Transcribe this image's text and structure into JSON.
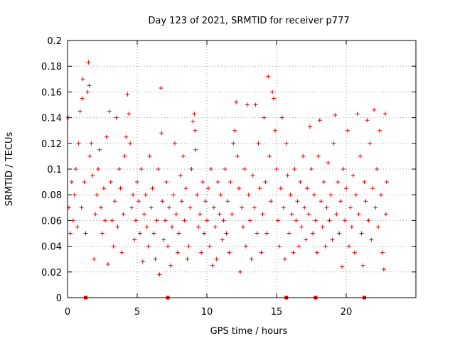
{
  "chart_data": {
    "type": "scatter",
    "title": "Day 123 of 2021, SRMTID for receiver p777",
    "xlabel": "GPS time / hours",
    "ylabel": "SRMTID / TECUs",
    "xlim": [
      0,
      25
    ],
    "ylim": [
      0,
      0.2
    ],
    "x_ticks": [
      0,
      5,
      10,
      15,
      20
    ],
    "x_tick_labels": [
      "0",
      "5",
      "10",
      "15",
      "20"
    ],
    "y_ticks": [
      0,
      0.02,
      0.04,
      0.06,
      0.08,
      0.1,
      0.12,
      0.14,
      0.16,
      0.18,
      0.2
    ],
    "y_tick_labels": [
      "0",
      "0.02",
      "0.04",
      "0.06",
      "0.08",
      "0.1",
      "0.12",
      "0.14",
      "0.16",
      "0.18",
      "0.2"
    ],
    "grid": true,
    "marker": "+",
    "color": "#e00000",
    "series": [
      {
        "name": "SRMTID",
        "points": [
          [
            0.05,
            0.14
          ],
          [
            0.1,
            0.07
          ],
          [
            0.2,
            0.05
          ],
          [
            0.3,
            0.09
          ],
          [
            0.4,
            0.06
          ],
          [
            0.5,
            0.08
          ],
          [
            0.6,
            0.1
          ],
          [
            0.7,
            0.055
          ],
          [
            0.8,
            0.12
          ],
          [
            0.9,
            0.145
          ],
          [
            1.0,
            0.07
          ],
          [
            1.05,
            0.155
          ],
          [
            1.1,
            0.17
          ],
          [
            1.2,
            0.09
          ],
          [
            1.3,
            0.05
          ],
          [
            1.45,
            0.16
          ],
          [
            1.5,
            0.183
          ],
          [
            1.55,
            0.165
          ],
          [
            1.6,
            0.11
          ],
          [
            1.7,
            0.12
          ],
          [
            1.8,
            0.095
          ],
          [
            1.9,
            0.03
          ],
          [
            2.0,
            0.065
          ],
          [
            2.1,
            0.08
          ],
          [
            2.2,
            0.1
          ],
          [
            2.3,
            0.115
          ],
          [
            2.4,
            0.07
          ],
          [
            2.5,
            0.05
          ],
          [
            2.6,
            0.085
          ],
          [
            2.7,
            0.06
          ],
          [
            2.8,
            0.125
          ],
          [
            2.9,
            0.026
          ],
          [
            3.0,
            0.145
          ],
          [
            3.1,
            0.09
          ],
          [
            3.2,
            0.06
          ],
          [
            3.3,
            0.04
          ],
          [
            3.4,
            0.075
          ],
          [
            3.5,
            0.14
          ],
          [
            3.6,
            0.055
          ],
          [
            3.7,
            0.1
          ],
          [
            3.8,
            0.085
          ],
          [
            3.9,
            0.035
          ],
          [
            4.0,
            0.065
          ],
          [
            4.1,
            0.11
          ],
          [
            4.2,
            0.125
          ],
          [
            4.3,
            0.158
          ],
          [
            4.4,
            0.143
          ],
          [
            4.5,
            0.12
          ],
          [
            4.6,
            0.07
          ],
          [
            4.7,
            0.08
          ],
          [
            4.8,
            0.045
          ],
          [
            4.9,
            0.06
          ],
          [
            5.0,
            0.09
          ],
          [
            5.1,
            0.075
          ],
          [
            5.2,
            0.05
          ],
          [
            5.3,
            0.1
          ],
          [
            5.4,
            0.028
          ],
          [
            5.5,
            0.065
          ],
          [
            5.6,
            0.08
          ],
          [
            5.7,
            0.055
          ],
          [
            5.8,
            0.04
          ],
          [
            5.9,
            0.11
          ],
          [
            6.0,
            0.07
          ],
          [
            6.1,
            0.085
          ],
          [
            6.2,
            0.05
          ],
          [
            6.3,
            0.03
          ],
          [
            6.4,
            0.06
          ],
          [
            6.5,
            0.1
          ],
          [
            6.6,
            0.018
          ],
          [
            6.7,
            0.163
          ],
          [
            6.75,
            0.128
          ],
          [
            6.8,
            0.075
          ],
          [
            6.9,
            0.045
          ],
          [
            7.0,
            0.06
          ],
          [
            7.1,
            0.09
          ],
          [
            7.2,
            0.04
          ],
          [
            7.3,
            0.07
          ],
          [
            7.4,
            0.025
          ],
          [
            7.5,
            0.055
          ],
          [
            7.6,
            0.08
          ],
          [
            7.7,
            0.12
          ],
          [
            7.8,
            0.065
          ],
          [
            7.9,
            0.035
          ],
          [
            8.0,
            0.05
          ],
          [
            8.1,
            0.095
          ],
          [
            8.2,
            0.075
          ],
          [
            8.3,
            0.11
          ],
          [
            8.4,
            0.06
          ],
          [
            8.5,
            0.085
          ],
          [
            8.6,
            0.03
          ],
          [
            8.7,
            0.04
          ],
          [
            8.8,
            0.07
          ],
          [
            8.9,
            0.1
          ],
          [
            9.0,
            0.137
          ],
          [
            9.1,
            0.143
          ],
          [
            9.15,
            0.13
          ],
          [
            9.2,
            0.115
          ],
          [
            9.3,
            0.08
          ],
          [
            9.4,
            0.055
          ],
          [
            9.5,
            0.065
          ],
          [
            9.6,
            0.035
          ],
          [
            9.7,
            0.09
          ],
          [
            9.8,
            0.05
          ],
          [
            9.9,
            0.075
          ],
          [
            10.0,
            0.06
          ],
          [
            10.1,
            0.085
          ],
          [
            10.2,
            0.04
          ],
          [
            10.3,
            0.1
          ],
          [
            10.4,
            0.025
          ],
          [
            10.5,
            0.07
          ],
          [
            10.6,
            0.055
          ],
          [
            10.7,
            0.03
          ],
          [
            10.8,
            0.09
          ],
          [
            10.9,
            0.065
          ],
          [
            11.0,
            0.08
          ],
          [
            11.1,
            0.045
          ],
          [
            11.2,
            0.06
          ],
          [
            11.3,
            0.1
          ],
          [
            11.4,
            0.05
          ],
          [
            11.5,
            0.075
          ],
          [
            11.6,
            0.035
          ],
          [
            11.7,
            0.09
          ],
          [
            11.8,
            0.065
          ],
          [
            11.9,
            0.12
          ],
          [
            12.0,
            0.13
          ],
          [
            12.1,
            0.152
          ],
          [
            12.2,
            0.11
          ],
          [
            12.3,
            0.085
          ],
          [
            12.4,
            0.02
          ],
          [
            12.5,
            0.07
          ],
          [
            12.6,
            0.055
          ],
          [
            12.7,
            0.1
          ],
          [
            12.8,
            0.04
          ],
          [
            12.9,
            0.15
          ],
          [
            13.0,
            0.08
          ],
          [
            13.1,
            0.06
          ],
          [
            13.2,
            0.03
          ],
          [
            13.3,
            0.095
          ],
          [
            13.4,
            0.07
          ],
          [
            13.5,
            0.15
          ],
          [
            13.6,
            0.05
          ],
          [
            13.7,
            0.12
          ],
          [
            13.8,
            0.085
          ],
          [
            13.9,
            0.035
          ],
          [
            14.0,
            0.065
          ],
          [
            14.1,
            0.14
          ],
          [
            14.2,
            0.09
          ],
          [
            14.3,
            0.05
          ],
          [
            14.4,
            0.172
          ],
          [
            14.5,
            0.11
          ],
          [
            14.6,
            0.075
          ],
          [
            14.7,
            0.16
          ],
          [
            14.8,
            0.155
          ],
          [
            14.9,
            0.13
          ],
          [
            15.0,
            0.1
          ],
          [
            15.1,
            0.06
          ],
          [
            15.2,
            0.04
          ],
          [
            15.3,
            0.085
          ],
          [
            15.4,
            0.14
          ],
          [
            15.5,
            0.07
          ],
          [
            15.6,
            0.03
          ],
          [
            15.7,
            0.12
          ],
          [
            15.8,
            0.095
          ],
          [
            15.9,
            0.05
          ],
          [
            16.0,
            0.08
          ],
          [
            16.1,
            0.065
          ],
          [
            16.2,
            0.035
          ],
          [
            16.3,
            0.1
          ],
          [
            16.4,
            0.06
          ],
          [
            16.5,
            0.075
          ],
          [
            16.6,
            0.04
          ],
          [
            16.7,
            0.09
          ],
          [
            16.8,
            0.055
          ],
          [
            16.9,
            0.11
          ],
          [
            17.0,
            0.07
          ],
          [
            17.1,
            0.045
          ],
          [
            17.2,
            0.085
          ],
          [
            17.3,
            0.065
          ],
          [
            17.4,
            0.133
          ],
          [
            17.5,
            0.1
          ],
          [
            17.6,
            0.05
          ],
          [
            17.7,
            0.08
          ],
          [
            17.8,
            0.06
          ],
          [
            17.9,
            0.035
          ],
          [
            18.0,
            0.11
          ],
          [
            18.1,
            0.138
          ],
          [
            18.2,
            0.075
          ],
          [
            18.3,
            0.055
          ],
          [
            18.4,
            0.09
          ],
          [
            18.5,
            0.04
          ],
          [
            18.6,
            0.07
          ],
          [
            18.7,
            0.105
          ],
          [
            18.8,
            0.06
          ],
          [
            18.9,
            0.08
          ],
          [
            19.0,
            0.045
          ],
          [
            19.1,
            0.12
          ],
          [
            19.2,
            0.142
          ],
          [
            19.3,
            0.065
          ],
          [
            19.4,
            0.09
          ],
          [
            19.5,
            0.05
          ],
          [
            19.6,
            0.075
          ],
          [
            19.7,
            0.024
          ],
          [
            19.8,
            0.1
          ],
          [
            19.9,
            0.06
          ],
          [
            20.0,
            0.085
          ],
          [
            20.1,
            0.13
          ],
          [
            20.2,
            0.04
          ],
          [
            20.3,
            0.07
          ],
          [
            20.4,
            0.055
          ],
          [
            20.5,
            0.095
          ],
          [
            20.6,
            0.035
          ],
          [
            20.7,
            0.08
          ],
          [
            20.8,
            0.143
          ],
          [
            20.9,
            0.065
          ],
          [
            21.0,
            0.11
          ],
          [
            21.1,
            0.05
          ],
          [
            21.2,
            0.025
          ],
          [
            21.3,
            0.09
          ],
          [
            21.4,
            0.075
          ],
          [
            21.5,
            0.138
          ],
          [
            21.6,
            0.06
          ],
          [
            21.7,
            0.12
          ],
          [
            21.8,
            0.045
          ],
          [
            21.9,
            0.085
          ],
          [
            22.0,
            0.146
          ],
          [
            22.1,
            0.07
          ],
          [
            22.2,
            0.1
          ],
          [
            22.3,
            0.055
          ],
          [
            22.4,
            0.13
          ],
          [
            22.5,
            0.08
          ],
          [
            22.6,
            0.035
          ],
          [
            22.7,
            0.022
          ],
          [
            22.8,
            0.143
          ],
          [
            22.85,
            0.065
          ],
          [
            22.9,
            0.09
          ]
        ]
      }
    ],
    "gap_markers_x": [
      1.3,
      7.2,
      15.7,
      17.8,
      21.3
    ]
  }
}
